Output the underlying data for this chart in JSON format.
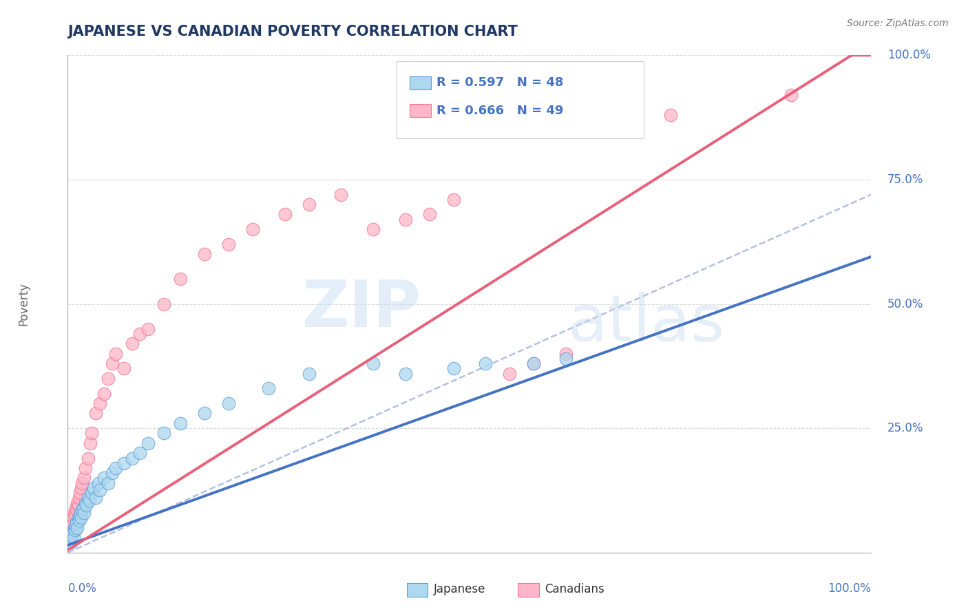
{
  "title": "JAPANESE VS CANADIAN POVERTY CORRELATION CHART",
  "source_text": "Source: ZipAtlas.com",
  "watermark_zip": "ZIP",
  "watermark_atlas": "atlas",
  "ylabel": "Poverty",
  "ytick_labels": [
    "100.0%",
    "75.0%",
    "50.0%",
    "25.0%"
  ],
  "ytick_values": [
    100,
    75,
    50,
    25
  ],
  "legend_jp_text": "R = 0.597   N = 48",
  "legend_ca_text": "R = 0.666   N = 49",
  "legend_label_jp": "Japanese",
  "legend_label_ca": "Canadians",
  "color_jp_fill": "#add8f0",
  "color_jp_edge": "#5b9bd5",
  "color_ca_fill": "#ffb6c8",
  "color_ca_edge": "#f07090",
  "color_reg_jp": "#4472c4",
  "color_reg_ca": "#e8607a",
  "color_dash": "#aabbdd",
  "color_title": "#1f3864",
  "color_axis": "#4472c4",
  "color_source": "#777777",
  "color_grid": "#d0d0d0",
  "color_watermark_zip": "#cce0f5",
  "color_watermark_atlas": "#c8ddf0",
  "background_color": "#ffffff",
  "jp_slope": 0.58,
  "jp_intercept": 1.5,
  "ca_slope": 1.02,
  "ca_intercept": 0.5,
  "dash_slope": 0.72,
  "dash_intercept": 0.0,
  "jp_x_base": [
    0.2,
    0.3,
    0.4,
    0.5,
    0.6,
    0.7,
    0.8,
    0.9,
    1.0,
    1.1,
    1.2,
    1.3,
    1.4,
    1.5,
    1.6,
    1.7,
    1.8,
    1.9,
    2.0,
    2.2,
    2.3,
    2.5,
    2.7,
    3.0,
    3.2,
    3.5,
    3.8,
    4.0,
    4.5,
    5.0,
    5.5,
    6.0,
    7.0,
    8.0,
    9.0,
    10.0,
    12.0,
    14.0,
    17.0,
    20.0,
    25.0,
    30.0,
    38.0,
    42.0,
    48.0,
    52.0,
    58.0,
    62.0
  ],
  "jp_y_vals": [
    2.5,
    3.0,
    2.0,
    3.5,
    4.0,
    3.0,
    5.0,
    4.5,
    5.5,
    6.0,
    5.0,
    7.0,
    6.5,
    7.5,
    8.0,
    7.0,
    8.5,
    9.0,
    8.0,
    10.0,
    9.5,
    11.0,
    10.5,
    12.0,
    13.0,
    11.0,
    14.0,
    12.5,
    15.0,
    14.0,
    16.0,
    17.0,
    18.0,
    19.0,
    20.0,
    22.0,
    24.0,
    26.0,
    28.0,
    30.0,
    33.0,
    36.0,
    38.0,
    36.0,
    37.0,
    38.0,
    38.0,
    39.0
  ],
  "ca_x_base": [
    0.1,
    0.2,
    0.3,
    0.4,
    0.5,
    0.6,
    0.7,
    0.8,
    0.9,
    1.0,
    1.1,
    1.2,
    1.3,
    1.4,
    1.5,
    1.7,
    1.8,
    2.0,
    2.2,
    2.5,
    2.8,
    3.0,
    3.5,
    4.0,
    4.5,
    5.0,
    5.5,
    6.0,
    7.0,
    8.0,
    9.0,
    10.0,
    12.0,
    14.0,
    17.0,
    20.0,
    23.0,
    27.0,
    30.0,
    34.0,
    38.0,
    42.0,
    45.0,
    48.0,
    55.0,
    58.0,
    62.0,
    75.0,
    90.0
  ],
  "ca_y_vals": [
    3.0,
    4.0,
    5.0,
    4.5,
    6.0,
    5.5,
    7.0,
    8.0,
    7.5,
    9.0,
    8.5,
    10.0,
    9.5,
    11.0,
    12.0,
    13.0,
    14.0,
    15.0,
    17.0,
    19.0,
    22.0,
    24.0,
    28.0,
    30.0,
    32.0,
    35.0,
    38.0,
    40.0,
    37.0,
    42.0,
    44.0,
    45.0,
    50.0,
    55.0,
    60.0,
    62.0,
    65.0,
    68.0,
    70.0,
    72.0,
    65.0,
    67.0,
    68.0,
    71.0,
    36.0,
    38.0,
    40.0,
    88.0,
    92.0
  ]
}
